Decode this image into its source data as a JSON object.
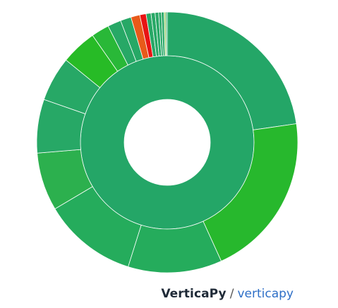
{
  "chart_data": {
    "type": "sunburst",
    "title": "",
    "inner_ring": [
      {
        "value": 100,
        "color": "#24a667"
      }
    ],
    "outer_ring": [
      {
        "value": 20.5,
        "color": "#24a667"
      },
      {
        "value": 18.5,
        "color": "#27b82d"
      },
      {
        "value": 10.5,
        "color": "#25ac5c"
      },
      {
        "value": 10.5,
        "color": "#25ac5c"
      },
      {
        "value": 6.5,
        "color": "#2cb04e"
      },
      {
        "value": 6.0,
        "color": "#27a866"
      },
      {
        "value": 5.0,
        "color": "#27a866"
      },
      {
        "value": 4.0,
        "color": "#27bb26"
      },
      {
        "value": 2.0,
        "color": "#29b838"
      },
      {
        "value": 1.5,
        "color": "#27a866"
      },
      {
        "value": 1.2,
        "color": "#27a866"
      },
      {
        "value": 1.0,
        "color": "#e85a1a"
      },
      {
        "value": 0.7,
        "color": "#e81414"
      },
      {
        "value": 0.55,
        "color": "#27a866"
      },
      {
        "value": 0.45,
        "color": "#27a866"
      },
      {
        "value": 0.4,
        "color": "#27a866"
      },
      {
        "value": 0.3,
        "color": "#27a866"
      },
      {
        "value": 0.3,
        "color": "#27a866"
      },
      {
        "value": 0.2,
        "color": "#9cd06a"
      },
      {
        "value": 0.15,
        "color": "#27a866"
      }
    ]
  },
  "credit": {
    "brand": "VerticaPy",
    "separator": "/",
    "link": "verticapy"
  }
}
